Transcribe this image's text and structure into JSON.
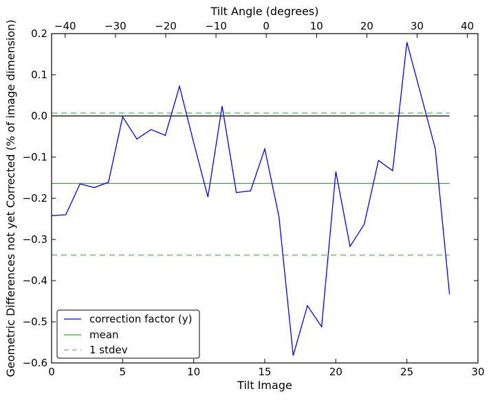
{
  "chart_data": {
    "type": "line",
    "xlabel": "Tilt Image",
    "ylabel": "Geometric Differences not yet Corrected (% of image dimension)",
    "top_xlabel": "Tilt Angle (degrees)",
    "xlim": [
      0,
      30
    ],
    "ylim": [
      -0.6,
      0.2
    ],
    "top_xlim": [
      -42.7,
      42.1
    ],
    "x_ticks": [
      0,
      5,
      10,
      15,
      20,
      25,
      30
    ],
    "y_ticks": [
      0.2,
      0.1,
      0.0,
      -0.1,
      -0.2,
      -0.3,
      -0.4,
      -0.5,
      -0.6
    ],
    "y_tick_labels": [
      "0.2",
      "0.1",
      "0.0",
      "−0.1",
      "−0.2",
      "−0.3",
      "−0.4",
      "−0.5",
      "−0.6"
    ],
    "top_ticks": [
      -40,
      -30,
      -20,
      -10,
      0,
      10,
      20,
      30,
      40
    ],
    "top_tick_labels": [
      "−40",
      "−30",
      "−20",
      "−10",
      "0",
      "10",
      "20",
      "30",
      "40"
    ],
    "series": [
      {
        "name": "correction factor (y)",
        "color": "#0000ff",
        "style": "solid",
        "x": [
          0,
          1,
          2,
          3,
          4,
          5,
          6,
          7,
          8,
          9,
          10,
          11,
          12,
          13,
          14,
          15,
          16,
          17,
          18,
          19,
          20,
          21,
          22,
          23,
          24,
          25,
          26,
          27,
          28
        ],
        "values": [
          -0.242,
          -0.24,
          -0.165,
          -0.174,
          -0.161,
          -0.002,
          -0.056,
          -0.033,
          -0.047,
          0.072,
          -0.065,
          -0.197,
          0.024,
          -0.186,
          -0.182,
          -0.08,
          -0.245,
          -0.582,
          -0.461,
          -0.512,
          -0.135,
          -0.317,
          -0.263,
          -0.108,
          -0.133,
          0.179,
          0.05,
          -0.08,
          -0.433
        ]
      },
      {
        "name": "mean",
        "color": "#33aa33",
        "style": "solid",
        "x": [
          0,
          28
        ],
        "values": [
          -0.164,
          -0.164
        ]
      },
      {
        "name": "1 stdev",
        "color": "#66bb66",
        "style": "dashed",
        "x": [
          0,
          28
        ],
        "values": [
          0.007,
          0.007
        ]
      },
      {
        "name": "1 stdev lower",
        "color": "#66bb66",
        "style": "dashed",
        "x": [
          0,
          28
        ],
        "values": [
          -0.338,
          -0.338
        ]
      },
      {
        "name": "zero",
        "color": "#000000",
        "style": "solid",
        "x": [
          0,
          28
        ],
        "values": [
          0,
          0
        ]
      }
    ],
    "legend": {
      "placement": "lower-left",
      "entries": [
        "correction factor (y)",
        "mean",
        "1 stdev"
      ]
    },
    "grid": false
  }
}
